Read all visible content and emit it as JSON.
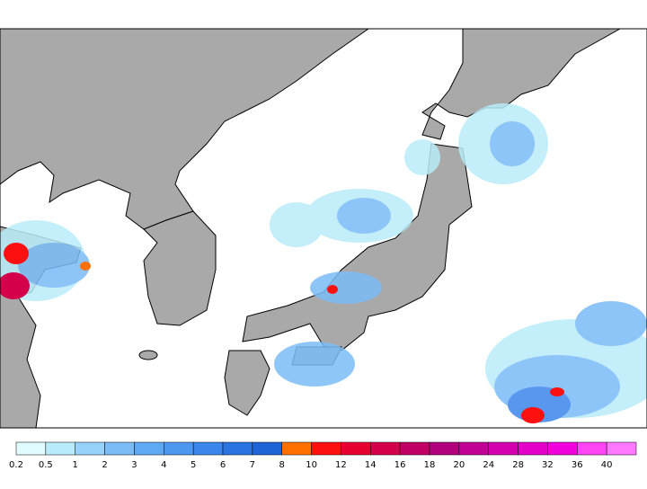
{
  "colorbar": {
    "labels": [
      "0.2",
      "0.5",
      "1",
      "2",
      "3",
      "4",
      "5",
      "6",
      "7",
      "8",
      "10",
      "12",
      "14",
      "16",
      "18",
      "20",
      "24",
      "28",
      "32",
      "36",
      "40"
    ],
    "colors": [
      "#e1fcff",
      "#b9ecfa",
      "#96d2fa",
      "#7bbcf7",
      "#5fa8f4",
      "#4c98f0",
      "#3a86ea",
      "#2a74e2",
      "#1e64d6",
      "#ff7000",
      "#ff1010",
      "#e80030",
      "#d4004c",
      "#c00064",
      "#b0007c",
      "#c20096",
      "#d400b0",
      "#e400c8",
      "#f000dc",
      "#ff44f4",
      "#ff78ff"
    ]
  }
}
